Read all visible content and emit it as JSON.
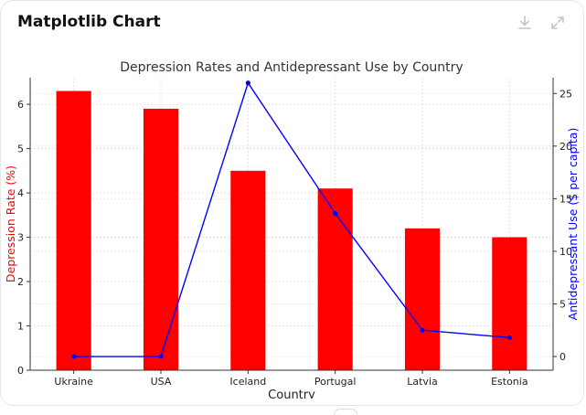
{
  "window": {
    "title": "Matplotlib Chart",
    "download_icon": "download-icon",
    "expand_icon": "expand-icon"
  },
  "chart_data": {
    "type": "bar+line",
    "title": "Depression Rates and Antidepressant Use by Country",
    "xlabel": "Country",
    "ylabel_left": "Depression Rate (%)",
    "ylabel_right": "Antidepressant Use ($ per capita)",
    "categories": [
      "Ukraine",
      "USA",
      "Iceland",
      "Portugal",
      "Latvia",
      "Estonia"
    ],
    "series": [
      {
        "axis": "left",
        "kind": "bar",
        "color": "#ff0000",
        "values": [
          6.3,
          5.9,
          4.5,
          4.1,
          3.2,
          3.0
        ]
      },
      {
        "axis": "right",
        "kind": "line",
        "color": "#0000ff",
        "values": [
          0,
          0,
          26,
          13.6,
          2.5,
          1.8
        ]
      }
    ],
    "ylim_left": [
      0,
      6.6
    ],
    "yticks_left": [
      0,
      1,
      2,
      3,
      4,
      5,
      6
    ],
    "ylim_right": [
      -1.3,
      26.5
    ],
    "yticks_right": [
      0,
      5,
      10,
      15,
      20,
      25
    ],
    "grid": true,
    "left_axis_color": "#ff0000",
    "right_axis_color": "#0000ff"
  }
}
